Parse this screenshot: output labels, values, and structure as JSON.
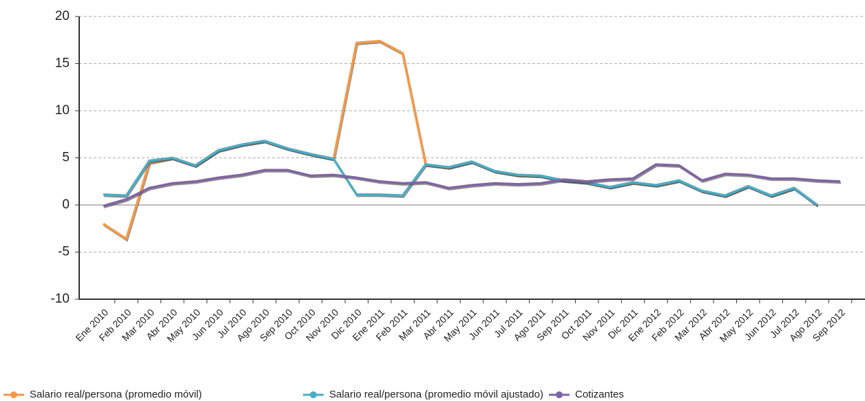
{
  "chart_data": {
    "type": "line",
    "categories": [
      "Ene 2010",
      "Feb 2010",
      "Mar 2010",
      "Abr 2010",
      "May 2010",
      "Jun 2010",
      "Jul 2010",
      "Ago 2010",
      "Sep 2010",
      "Oct 2010",
      "Nov 2010",
      "Dic 2010",
      "Ene 2011",
      "Feb 2011",
      "Mar 2011",
      "Abr 2011",
      "May 2011",
      "Jun 2011",
      "Jul 2011",
      "Ago 2011",
      "Sep 2011",
      "Oct 2011",
      "Nov 2011",
      "Dic 2011",
      "Ene 2012",
      "Feb 2012",
      "Mar 2012",
      "Abr 2012",
      "May 2012",
      "Jun 2012",
      "Jul 2012",
      "Ago 2012",
      "Sep 2012"
    ],
    "series": [
      {
        "name": "Salario real/persona (promedio móvil)",
        "color": "#f39a47",
        "values": [
          -2.0,
          -3.6,
          4.5,
          5.0,
          4.2,
          5.8,
          6.4,
          6.8,
          6.0,
          5.4,
          4.9,
          17.2,
          17.4,
          16.1,
          4.3,
          4.0,
          4.6,
          3.6,
          3.2,
          3.1,
          2.6,
          2.4,
          1.9,
          2.4,
          2.1,
          2.6,
          1.5,
          1.0,
          2.0,
          1.0,
          1.8,
          0,
          null
        ]
      },
      {
        "name": "Salario real/persona (promedio móvil ajustado)",
        "color": "#4bacc6",
        "values": [
          1.1,
          1.0,
          4.7,
          5.0,
          4.2,
          5.8,
          6.4,
          6.8,
          6.0,
          5.4,
          4.9,
          1.1,
          1.1,
          1.0,
          4.3,
          4.0,
          4.6,
          3.6,
          3.2,
          3.1,
          2.6,
          2.4,
          1.9,
          2.4,
          2.1,
          2.6,
          1.5,
          1.0,
          2.0,
          1.0,
          1.8,
          0,
          null
        ]
      },
      {
        "name": "Cotizantes",
        "color": "#8064a2",
        "values": [
          -0.1,
          0.6,
          1.8,
          2.3,
          2.5,
          2.9,
          3.2,
          3.7,
          3.7,
          3.1,
          3.2,
          2.9,
          2.5,
          2.3,
          2.4,
          1.8,
          2.1,
          2.3,
          2.2,
          2.3,
          2.7,
          2.5,
          2.7,
          2.8,
          4.3,
          4.2,
          2.6,
          3.3,
          3.2,
          2.8,
          2.8,
          2.6,
          2.5
        ]
      }
    ],
    "ylim": [
      -10,
      20
    ],
    "yticks": [
      -10,
      -5,
      0,
      5,
      10,
      15,
      20
    ],
    "grid": true
  }
}
